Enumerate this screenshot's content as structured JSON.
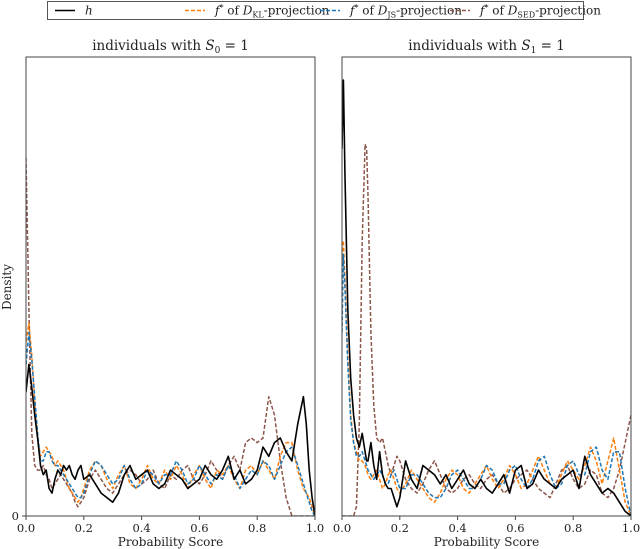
{
  "legend": {
    "items": [
      {
        "label": "h",
        "color": "#000000",
        "dash": "solid"
      },
      {
        "label_prefix": "f* of ",
        "label_div": "D",
        "label_sub": "KL",
        "label_suffix": "-projection",
        "color": "#ff7f0e",
        "dash": "dashed"
      },
      {
        "label_prefix": "f* of ",
        "label_div": "D",
        "label_sub": "JS",
        "label_suffix": "-projection",
        "color": "#1f77b4",
        "dash": "dashed"
      },
      {
        "label_prefix": "f* of ",
        "label_div": "D",
        "label_sub": "SED",
        "label_suffix": "-projection",
        "color": "#8c564b",
        "dash": "dashed"
      }
    ]
  },
  "ylabel": "Density",
  "chart_data": [
    {
      "type": "line",
      "title": "individuals with S_0 = 1",
      "title_text": "individuals with ",
      "title_var": "S",
      "title_sub": "0",
      "title_eq": " = 1",
      "xlabel": "Probability Score",
      "ylabel": "Density",
      "xlim": [
        0.0,
        1.0
      ],
      "ylim": [
        0,
        1
      ],
      "xticks": [
        "0.0",
        "0.2",
        "0.4",
        "0.6",
        "0.8",
        "1.0"
      ],
      "yticks": [
        "0"
      ],
      "grid": false,
      "legend_position": "top, outside, spanning both plots",
      "x": [
        0.0,
        0.01,
        0.02,
        0.03,
        0.04,
        0.05,
        0.06,
        0.07,
        0.08,
        0.09,
        0.1,
        0.11,
        0.12,
        0.13,
        0.14,
        0.15,
        0.16,
        0.17,
        0.18,
        0.19,
        0.2,
        0.22,
        0.24,
        0.26,
        0.28,
        0.3,
        0.32,
        0.34,
        0.36,
        0.38,
        0.4,
        0.42,
        0.44,
        0.46,
        0.48,
        0.5,
        0.52,
        0.54,
        0.56,
        0.58,
        0.6,
        0.62,
        0.64,
        0.66,
        0.68,
        0.7,
        0.72,
        0.74,
        0.76,
        0.78,
        0.8,
        0.82,
        0.84,
        0.86,
        0.88,
        0.9,
        0.92,
        0.94,
        0.96,
        0.97,
        0.98,
        0.99,
        1.0
      ],
      "series": [
        {
          "name": "h",
          "values": [
            0.27,
            0.33,
            0.28,
            0.22,
            0.17,
            0.11,
            0.09,
            0.1,
            0.06,
            0.05,
            0.08,
            0.1,
            0.09,
            0.11,
            0.1,
            0.11,
            0.09,
            0.08,
            0.1,
            0.11,
            0.08,
            0.09,
            0.07,
            0.05,
            0.04,
            0.03,
            0.05,
            0.09,
            0.11,
            0.08,
            0.09,
            0.1,
            0.07,
            0.06,
            0.07,
            0.1,
            0.09,
            0.08,
            0.06,
            0.07,
            0.08,
            0.11,
            0.09,
            0.08,
            0.1,
            0.13,
            0.08,
            0.1,
            0.07,
            0.08,
            0.1,
            0.15,
            0.13,
            0.16,
            0.17,
            0.14,
            0.12,
            0.2,
            0.26,
            0.2,
            0.1,
            0.04,
            0.0
          ]
        },
        {
          "name": "f* of D_KL-projection",
          "values": [
            0.38,
            0.42,
            0.35,
            0.25,
            0.17,
            0.13,
            0.14,
            0.15,
            0.14,
            0.13,
            0.11,
            0.12,
            0.11,
            0.1,
            0.08,
            0.06,
            0.05,
            0.04,
            0.03,
            0.04,
            0.06,
            0.1,
            0.12,
            0.11,
            0.08,
            0.06,
            0.09,
            0.11,
            0.07,
            0.06,
            0.08,
            0.11,
            0.08,
            0.07,
            0.1,
            0.08,
            0.11,
            0.09,
            0.06,
            0.09,
            0.11,
            0.08,
            0.06,
            0.1,
            0.09,
            0.11,
            0.08,
            0.06,
            0.1,
            0.11,
            0.09,
            0.12,
            0.1,
            0.08,
            0.13,
            0.16,
            0.16,
            0.1,
            0.06,
            0.05,
            0.04,
            0.02,
            0.0
          ]
        },
        {
          "name": "f* of D_JS-projection",
          "values": [
            0.33,
            0.4,
            0.34,
            0.26,
            0.18,
            0.12,
            0.12,
            0.14,
            0.14,
            0.12,
            0.11,
            0.11,
            0.1,
            0.09,
            0.08,
            0.07,
            0.06,
            0.05,
            0.04,
            0.04,
            0.05,
            0.09,
            0.12,
            0.11,
            0.09,
            0.07,
            0.08,
            0.11,
            0.08,
            0.06,
            0.07,
            0.1,
            0.09,
            0.07,
            0.09,
            0.09,
            0.12,
            0.1,
            0.07,
            0.08,
            0.11,
            0.09,
            0.07,
            0.09,
            0.08,
            0.11,
            0.09,
            0.06,
            0.08,
            0.1,
            0.09,
            0.12,
            0.11,
            0.08,
            0.11,
            0.14,
            0.15,
            0.11,
            0.07,
            0.05,
            0.03,
            0.01,
            0.0
          ]
        },
        {
          "name": "f* of D_SED-projection",
          "values": [
            0.78,
            0.45,
            0.18,
            0.11,
            0.1,
            0.1,
            0.11,
            0.09,
            0.08,
            0.06,
            0.07,
            0.08,
            0.09,
            0.08,
            0.07,
            0.06,
            0.05,
            0.03,
            0.02,
            0.03,
            0.04,
            0.08,
            0.1,
            0.08,
            0.06,
            0.05,
            0.07,
            0.09,
            0.1,
            0.09,
            0.07,
            0.08,
            0.1,
            0.07,
            0.06,
            0.09,
            0.08,
            0.1,
            0.11,
            0.08,
            0.07,
            0.09,
            0.12,
            0.1,
            0.08,
            0.11,
            0.13,
            0.1,
            0.16,
            0.17,
            0.16,
            0.17,
            0.26,
            0.22,
            0.12,
            0.04,
            0.0,
            0.0,
            0.0,
            0.0,
            0.0,
            0.0,
            0.0
          ]
        }
      ]
    },
    {
      "type": "line",
      "title": "individuals with S_1 = 1",
      "title_text": "individuals with ",
      "title_var": "S",
      "title_sub": "1",
      "title_eq": " = 1",
      "xlabel": "Probability Score",
      "ylabel": "",
      "xlim": [
        0.0,
        1.0
      ],
      "ylim": [
        0,
        1
      ],
      "xticks": [
        "0.0",
        "0.2",
        "0.4",
        "0.6",
        "0.8",
        "1.0"
      ],
      "yticks": [],
      "grid": false,
      "x": [
        0.0,
        0.005,
        0.01,
        0.02,
        0.03,
        0.04,
        0.05,
        0.06,
        0.07,
        0.08,
        0.085,
        0.09,
        0.1,
        0.11,
        0.12,
        0.13,
        0.14,
        0.15,
        0.16,
        0.17,
        0.18,
        0.19,
        0.2,
        0.22,
        0.24,
        0.26,
        0.28,
        0.3,
        0.32,
        0.34,
        0.36,
        0.38,
        0.4,
        0.42,
        0.44,
        0.46,
        0.48,
        0.5,
        0.52,
        0.54,
        0.56,
        0.58,
        0.6,
        0.62,
        0.64,
        0.66,
        0.68,
        0.7,
        0.72,
        0.74,
        0.76,
        0.78,
        0.8,
        0.82,
        0.84,
        0.86,
        0.88,
        0.9,
        0.92,
        0.94,
        0.96,
        0.98,
        1.0
      ],
      "series": [
        {
          "name": "h",
          "values": [
            0.8,
            0.95,
            0.75,
            0.45,
            0.3,
            0.22,
            0.17,
            0.15,
            0.18,
            0.14,
            0.12,
            0.12,
            0.16,
            0.11,
            0.08,
            0.14,
            0.09,
            0.07,
            0.06,
            0.06,
            0.04,
            0.02,
            0.04,
            0.12,
            0.08,
            0.06,
            0.11,
            0.1,
            0.09,
            0.07,
            0.09,
            0.06,
            0.08,
            0.1,
            0.07,
            0.06,
            0.08,
            0.06,
            0.05,
            0.07,
            0.09,
            0.05,
            0.1,
            0.11,
            0.06,
            0.07,
            0.1,
            0.08,
            0.07,
            0.06,
            0.08,
            0.09,
            0.1,
            0.06,
            0.13,
            0.09,
            0.07,
            0.05,
            0.06,
            0.05,
            0.03,
            0.01,
            0.0
          ]
        },
        {
          "name": "f* of D_KL-projection",
          "values": [
            0.55,
            0.6,
            0.52,
            0.35,
            0.22,
            0.16,
            0.14,
            0.12,
            0.12,
            0.11,
            0.1,
            0.09,
            0.08,
            0.09,
            0.1,
            0.08,
            0.06,
            0.07,
            0.09,
            0.1,
            0.08,
            0.06,
            0.05,
            0.07,
            0.1,
            0.08,
            0.06,
            0.04,
            0.03,
            0.05,
            0.08,
            0.1,
            0.09,
            0.06,
            0.05,
            0.07,
            0.09,
            0.11,
            0.08,
            0.06,
            0.08,
            0.11,
            0.09,
            0.06,
            0.07,
            0.1,
            0.13,
            0.1,
            0.07,
            0.06,
            0.09,
            0.12,
            0.1,
            0.08,
            0.11,
            0.15,
            0.12,
            0.07,
            0.12,
            0.17,
            0.1,
            0.03,
            0.0
          ]
        },
        {
          "name": "f* of D_JS-projection",
          "values": [
            0.4,
            0.57,
            0.5,
            0.33,
            0.21,
            0.16,
            0.13,
            0.13,
            0.14,
            0.12,
            0.11,
            0.1,
            0.09,
            0.08,
            0.09,
            0.1,
            0.09,
            0.07,
            0.07,
            0.09,
            0.1,
            0.08,
            0.06,
            0.06,
            0.09,
            0.09,
            0.07,
            0.05,
            0.04,
            0.04,
            0.06,
            0.09,
            0.1,
            0.08,
            0.06,
            0.06,
            0.08,
            0.11,
            0.1,
            0.07,
            0.07,
            0.1,
            0.11,
            0.08,
            0.06,
            0.08,
            0.12,
            0.13,
            0.09,
            0.06,
            0.07,
            0.11,
            0.12,
            0.09,
            0.09,
            0.14,
            0.15,
            0.1,
            0.08,
            0.14,
            0.14,
            0.06,
            0.0
          ]
        },
        {
          "name": "f* of D_SED-projection",
          "values": [
            0.0,
            0.0,
            0.0,
            0.0,
            0.0,
            0.0,
            0.02,
            0.2,
            0.6,
            0.81,
            0.8,
            0.7,
            0.4,
            0.24,
            0.17,
            0.16,
            0.17,
            0.14,
            0.11,
            0.09,
            0.11,
            0.13,
            0.12,
            0.08,
            0.06,
            0.05,
            0.07,
            0.1,
            0.12,
            0.09,
            0.06,
            0.05,
            0.06,
            0.08,
            0.09,
            0.07,
            0.06,
            0.08,
            0.09,
            0.07,
            0.05,
            0.06,
            0.08,
            0.09,
            0.1,
            0.08,
            0.06,
            0.05,
            0.04,
            0.07,
            0.1,
            0.11,
            0.08,
            0.06,
            0.07,
            0.1,
            0.09,
            0.05,
            0.04,
            0.06,
            0.1,
            0.16,
            0.22
          ]
        }
      ]
    }
  ]
}
